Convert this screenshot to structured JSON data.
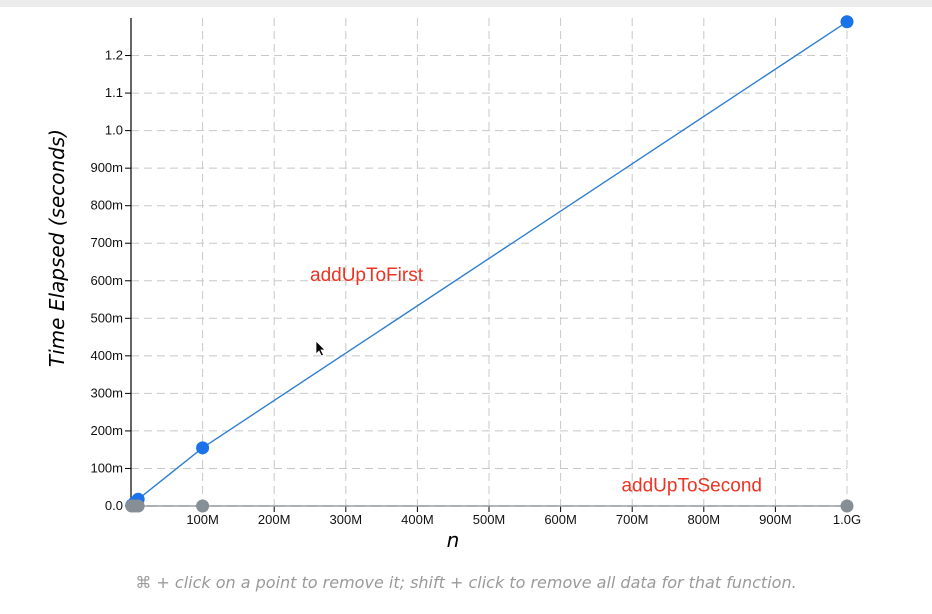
{
  "chart_data": {
    "type": "line",
    "title": "",
    "xlabel": "n",
    "ylabel": "Time Elapsed (seconds)",
    "xlim": [
      0,
      1000000000
    ],
    "ylim": [
      0,
      1.3
    ],
    "grid": true,
    "x_ticks": [
      {
        "value": 100000000,
        "label": "100M"
      },
      {
        "value": 200000000,
        "label": "200M"
      },
      {
        "value": 300000000,
        "label": "300M"
      },
      {
        "value": 400000000,
        "label": "400M"
      },
      {
        "value": 500000000,
        "label": "500M"
      },
      {
        "value": 600000000,
        "label": "600M"
      },
      {
        "value": 700000000,
        "label": "700M"
      },
      {
        "value": 800000000,
        "label": "800M"
      },
      {
        "value": 900000000,
        "label": "900M"
      },
      {
        "value": 1000000000,
        "label": "1.0G"
      }
    ],
    "y_ticks": [
      {
        "value": 0,
        "label": "0.0"
      },
      {
        "value": 0.1,
        "label": "100m"
      },
      {
        "value": 0.2,
        "label": "200m"
      },
      {
        "value": 0.3,
        "label": "300m"
      },
      {
        "value": 0.4,
        "label": "400m"
      },
      {
        "value": 0.5,
        "label": "500m"
      },
      {
        "value": 0.6,
        "label": "600m"
      },
      {
        "value": 0.7,
        "label": "700m"
      },
      {
        "value": 0.8,
        "label": "800m"
      },
      {
        "value": 0.9,
        "label": "900m"
      },
      {
        "value": 1.0,
        "label": "1.0"
      },
      {
        "value": 1.1,
        "label": "1.1"
      },
      {
        "value": 1.2,
        "label": "1.2"
      }
    ],
    "series": [
      {
        "name": "addUpToFirst",
        "color": "#2f7fd0",
        "marker_color": "#1a73e8",
        "label_color": "#ee3322",
        "label_anchor": {
          "x": 250000000,
          "y": 0.6
        },
        "points": [
          {
            "x": 1000000,
            "y": 0.002
          },
          {
            "x": 5000000,
            "y": 0.009
          },
          {
            "x": 10000000,
            "y": 0.018
          },
          {
            "x": 100000000,
            "y": 0.155
          },
          {
            "x": 1000000000,
            "y": 1.29
          }
        ]
      },
      {
        "name": "addUpToSecond",
        "color": "#9aa0a6",
        "marker_color": "#868e96",
        "label_color": "#ee3322",
        "label_anchor": {
          "x": 685000000,
          "y": 0.038
        },
        "points": [
          {
            "x": 1000000,
            "y": 0.0
          },
          {
            "x": 5000000,
            "y": 0.0
          },
          {
            "x": 10000000,
            "y": 0.0
          },
          {
            "x": 100000000,
            "y": 0.0
          },
          {
            "x": 1000000000,
            "y": 0.0
          }
        ]
      }
    ]
  },
  "caption": "⌘ + click on a point to remove it; shift + click to remove all data for that function."
}
